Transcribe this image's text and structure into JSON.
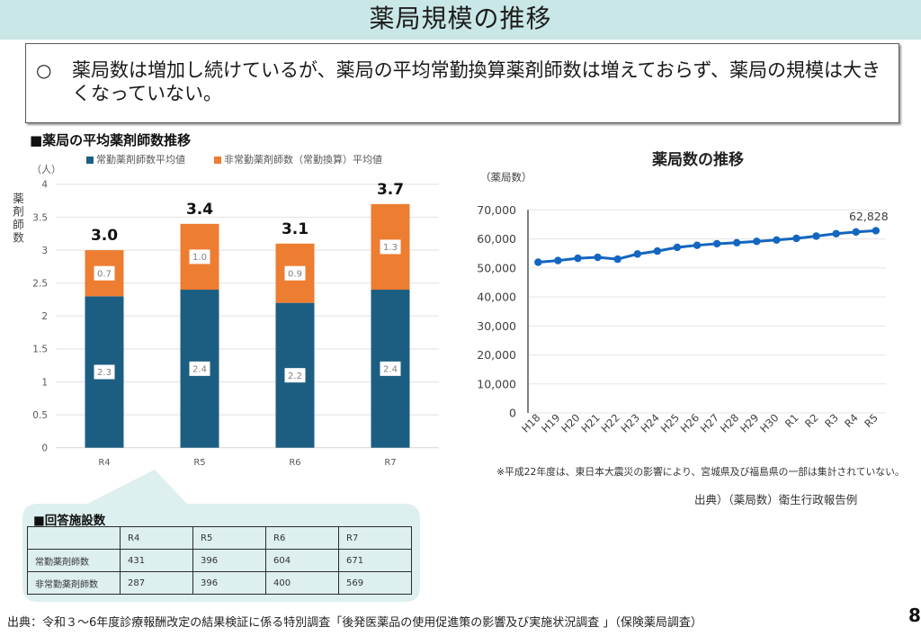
{
  "header": {
    "title": "薬局規模の推移"
  },
  "summary": {
    "bullet": "○",
    "text": "薬局数は増加し続けているが、薬局の平均常勤換算薬剤師数は増えておらず、薬局の規模は大きくなっていない。"
  },
  "chart_data": [
    {
      "type": "bar",
      "stacked": true,
      "title": "■薬局の平均薬剤師数推移",
      "ylabel": "薬剤師数",
      "yunit": "（人）",
      "xlabel": "",
      "categories": [
        "R4",
        "R5",
        "R6",
        "R7"
      ],
      "series": [
        {
          "name": "常勤薬剤師数平均値",
          "color": "#1B5E82",
          "values": [
            2.3,
            2.4,
            2.2,
            2.4
          ],
          "labels": [
            "2.3",
            "2.4",
            "2.2",
            "2.4"
          ]
        },
        {
          "name": "非常勤薬剤師数（常勤換算）平均値",
          "color": "#ED7D31",
          "values": [
            0.7,
            1.0,
            0.9,
            1.3
          ],
          "labels": [
            "0.7",
            "1.0",
            "0.9",
            "1.3"
          ]
        }
      ],
      "totals": [
        3.0,
        3.4,
        3.1,
        3.7
      ],
      "total_labels": [
        "3.0",
        "3.4",
        "3.1",
        "3.7"
      ],
      "ylim": [
        0,
        4
      ],
      "yticks": [
        0,
        0.5,
        1,
        1.5,
        2,
        2.5,
        3,
        3.5,
        4
      ],
      "ytick_labels": [
        "0",
        "0.5",
        "1",
        "1.5",
        "2",
        "2.5",
        "3",
        "3.5",
        "4"
      ],
      "grid": true,
      "legend": "top"
    },
    {
      "type": "line",
      "title": "薬局数の推移",
      "ylabel": "（薬局数）",
      "xlabel": "",
      "x": [
        "H18",
        "H19",
        "H20",
        "H21",
        "H22",
        "H23",
        "H24",
        "H25",
        "H26",
        "H27",
        "H28",
        "H29",
        "H30",
        "R1",
        "R2",
        "R3",
        "R4",
        "R5"
      ],
      "series": [
        {
          "name": "薬局数",
          "color": "#1466C0",
          "values": [
            51952,
            52539,
            53304,
            53642,
            53001,
            54780,
            55797,
            57071,
            57784,
            58326,
            58678,
            59138,
            59613,
            60171,
            60951,
            61791,
            62375,
            62828
          ]
        }
      ],
      "ylim": [
        0,
        70000
      ],
      "yticks": [
        0,
        10000,
        20000,
        30000,
        40000,
        50000,
        60000,
        70000
      ],
      "ytick_labels": [
        "0",
        "10,000",
        "20,000",
        "30,000",
        "40,000",
        "50,000",
        "60,000",
        "70,000"
      ],
      "annotations": [
        {
          "x": "R5",
          "text": "62,828"
        }
      ],
      "grid": true,
      "legend": "none"
    }
  ],
  "line_notes": {
    "note": "※平成22年度は、東日本大震災の影響により、宮城県及び福島県の一部は集計されていない。",
    "source": "出典）（薬局数）衛生行政報告例"
  },
  "response_table": {
    "title": "■回答施設数",
    "columns": [
      "",
      "R4",
      "R5",
      "R6",
      "R7"
    ],
    "rows": [
      {
        "label": "常勤薬剤師数",
        "values": [
          "431",
          "396",
          "604",
          "671"
        ]
      },
      {
        "label": "非常勤薬剤師数",
        "values": [
          "287",
          "396",
          "400",
          "569"
        ]
      }
    ]
  },
  "footer": {
    "source": "出典：令和３～6年度診療報酬改定の結果検証に係る特別調査「後発医薬品の使用促進策の影響及び実施状況調査 」（保険薬局調査）",
    "page": "8"
  }
}
